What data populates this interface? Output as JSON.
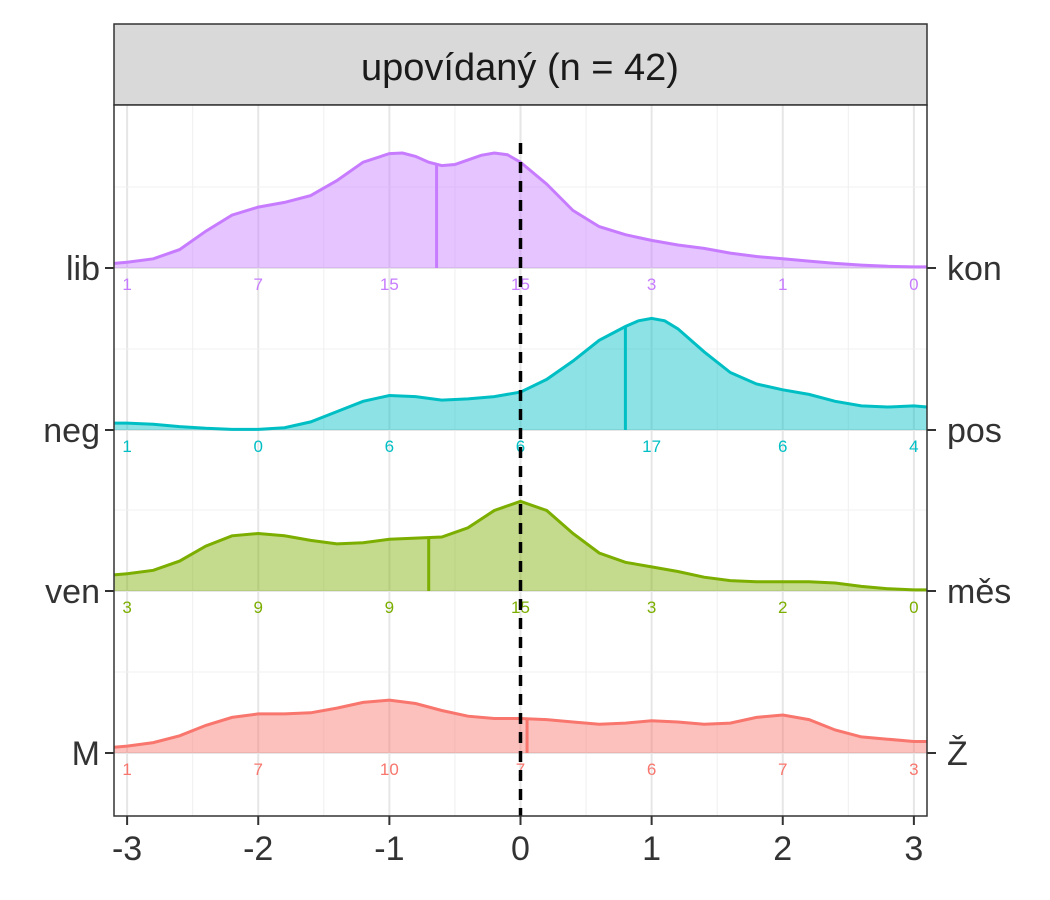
{
  "chart_data": {
    "type": "area",
    "title": "upovídaný (n = 42)",
    "xlabel": "",
    "ylabel": "",
    "xlim": [
      -3.1,
      3.1
    ],
    "x_ticks": [
      -3,
      -2,
      -1,
      0,
      1,
      2,
      3
    ],
    "x_tick_labels": [
      "-3",
      "-2",
      "-1",
      "0",
      "1",
      "2",
      "3"
    ],
    "reference_line_x": 0,
    "grid": true,
    "count_positions": [
      -3,
      -2,
      -1,
      0,
      1,
      2,
      3
    ],
    "series": [
      {
        "name_left": "lib",
        "name_right": "kon",
        "color": "#C77CFF",
        "mean": -0.64,
        "counts": [
          1,
          7,
          15,
          15,
          3,
          1,
          0
        ],
        "density": [
          [
            -3.1,
            0.04
          ],
          [
            -3.0,
            0.05
          ],
          [
            -2.8,
            0.08
          ],
          [
            -2.6,
            0.16
          ],
          [
            -2.4,
            0.32
          ],
          [
            -2.2,
            0.46
          ],
          [
            -2.0,
            0.53
          ],
          [
            -1.8,
            0.57
          ],
          [
            -1.6,
            0.63
          ],
          [
            -1.4,
            0.76
          ],
          [
            -1.2,
            0.92
          ],
          [
            -1.0,
            0.995
          ],
          [
            -0.9,
            1.0
          ],
          [
            -0.8,
            0.97
          ],
          [
            -0.7,
            0.92
          ],
          [
            -0.6,
            0.89
          ],
          [
            -0.5,
            0.9
          ],
          [
            -0.4,
            0.94
          ],
          [
            -0.3,
            0.98
          ],
          [
            -0.2,
            1.0
          ],
          [
            -0.1,
            0.985
          ],
          [
            0.0,
            0.92
          ],
          [
            0.2,
            0.73
          ],
          [
            0.4,
            0.5
          ],
          [
            0.6,
            0.36
          ],
          [
            0.8,
            0.29
          ],
          [
            1.0,
            0.24
          ],
          [
            1.2,
            0.2
          ],
          [
            1.4,
            0.17
          ],
          [
            1.6,
            0.13
          ],
          [
            1.8,
            0.1
          ],
          [
            2.0,
            0.08
          ],
          [
            2.2,
            0.06
          ],
          [
            2.4,
            0.04
          ],
          [
            2.6,
            0.025
          ],
          [
            2.8,
            0.015
          ],
          [
            3.0,
            0.01
          ],
          [
            3.1,
            0.01
          ]
        ]
      },
      {
        "name_left": "neg",
        "name_right": "pos",
        "color": "#00BFC4",
        "mean": 0.8,
        "counts": [
          1,
          0,
          6,
          6,
          17,
          6,
          4
        ],
        "density": [
          [
            -3.1,
            0.06
          ],
          [
            -3.0,
            0.06
          ],
          [
            -2.8,
            0.05
          ],
          [
            -2.6,
            0.03
          ],
          [
            -2.4,
            0.015
          ],
          [
            -2.2,
            0.005
          ],
          [
            -2.0,
            0.005
          ],
          [
            -1.8,
            0.02
          ],
          [
            -1.6,
            0.07
          ],
          [
            -1.4,
            0.16
          ],
          [
            -1.2,
            0.25
          ],
          [
            -1.0,
            0.3
          ],
          [
            -0.8,
            0.29
          ],
          [
            -0.6,
            0.26
          ],
          [
            -0.4,
            0.27
          ],
          [
            -0.2,
            0.29
          ],
          [
            0.0,
            0.33
          ],
          [
            0.2,
            0.44
          ],
          [
            0.4,
            0.6
          ],
          [
            0.6,
            0.78
          ],
          [
            0.8,
            0.9
          ],
          [
            0.9,
            0.95
          ],
          [
            1.0,
            0.97
          ],
          [
            1.1,
            0.95
          ],
          [
            1.2,
            0.88
          ],
          [
            1.4,
            0.68
          ],
          [
            1.6,
            0.5
          ],
          [
            1.8,
            0.4
          ],
          [
            2.0,
            0.35
          ],
          [
            2.2,
            0.31
          ],
          [
            2.4,
            0.25
          ],
          [
            2.6,
            0.21
          ],
          [
            2.8,
            0.2
          ],
          [
            3.0,
            0.21
          ],
          [
            3.1,
            0.2
          ]
        ]
      },
      {
        "name_left": "ven",
        "name_right": "měs",
        "color": "#7CAE00",
        "mean": -0.7,
        "counts": [
          3,
          9,
          9,
          15,
          3,
          2,
          0
        ],
        "density": [
          [
            -3.1,
            0.14
          ],
          [
            -3.0,
            0.15
          ],
          [
            -2.8,
            0.18
          ],
          [
            -2.6,
            0.26
          ],
          [
            -2.4,
            0.39
          ],
          [
            -2.2,
            0.48
          ],
          [
            -2.0,
            0.5
          ],
          [
            -1.8,
            0.48
          ],
          [
            -1.6,
            0.44
          ],
          [
            -1.4,
            0.41
          ],
          [
            -1.2,
            0.42
          ],
          [
            -1.0,
            0.45
          ],
          [
            -0.8,
            0.46
          ],
          [
            -0.6,
            0.47
          ],
          [
            -0.4,
            0.55
          ],
          [
            -0.2,
            0.7
          ],
          [
            0.0,
            0.78
          ],
          [
            0.2,
            0.7
          ],
          [
            0.4,
            0.5
          ],
          [
            0.6,
            0.33
          ],
          [
            0.8,
            0.25
          ],
          [
            1.0,
            0.21
          ],
          [
            1.2,
            0.17
          ],
          [
            1.4,
            0.12
          ],
          [
            1.6,
            0.09
          ],
          [
            1.8,
            0.08
          ],
          [
            2.0,
            0.08
          ],
          [
            2.2,
            0.08
          ],
          [
            2.4,
            0.07
          ],
          [
            2.6,
            0.04
          ],
          [
            2.8,
            0.02
          ],
          [
            3.0,
            0.01
          ],
          [
            3.1,
            0.01
          ]
        ]
      },
      {
        "name_left": "M",
        "name_right": "Ž",
        "color": "#F8766D",
        "mean": 0.05,
        "counts": [
          1,
          7,
          10,
          7,
          6,
          7,
          3
        ],
        "density": [
          [
            -3.1,
            0.05
          ],
          [
            -3.0,
            0.06
          ],
          [
            -2.8,
            0.09
          ],
          [
            -2.6,
            0.15
          ],
          [
            -2.4,
            0.24
          ],
          [
            -2.2,
            0.31
          ],
          [
            -2.0,
            0.34
          ],
          [
            -1.8,
            0.34
          ],
          [
            -1.6,
            0.35
          ],
          [
            -1.4,
            0.39
          ],
          [
            -1.2,
            0.44
          ],
          [
            -1.0,
            0.46
          ],
          [
            -0.8,
            0.43
          ],
          [
            -0.6,
            0.37
          ],
          [
            -0.4,
            0.32
          ],
          [
            -0.2,
            0.3
          ],
          [
            0.0,
            0.3
          ],
          [
            0.2,
            0.29
          ],
          [
            0.4,
            0.27
          ],
          [
            0.6,
            0.25
          ],
          [
            0.8,
            0.26
          ],
          [
            1.0,
            0.28
          ],
          [
            1.2,
            0.27
          ],
          [
            1.4,
            0.25
          ],
          [
            1.6,
            0.26
          ],
          [
            1.8,
            0.31
          ],
          [
            2.0,
            0.33
          ],
          [
            2.2,
            0.29
          ],
          [
            2.4,
            0.2
          ],
          [
            2.6,
            0.14
          ],
          [
            2.8,
            0.12
          ],
          [
            3.0,
            0.1
          ],
          [
            3.1,
            0.1
          ]
        ]
      }
    ]
  }
}
